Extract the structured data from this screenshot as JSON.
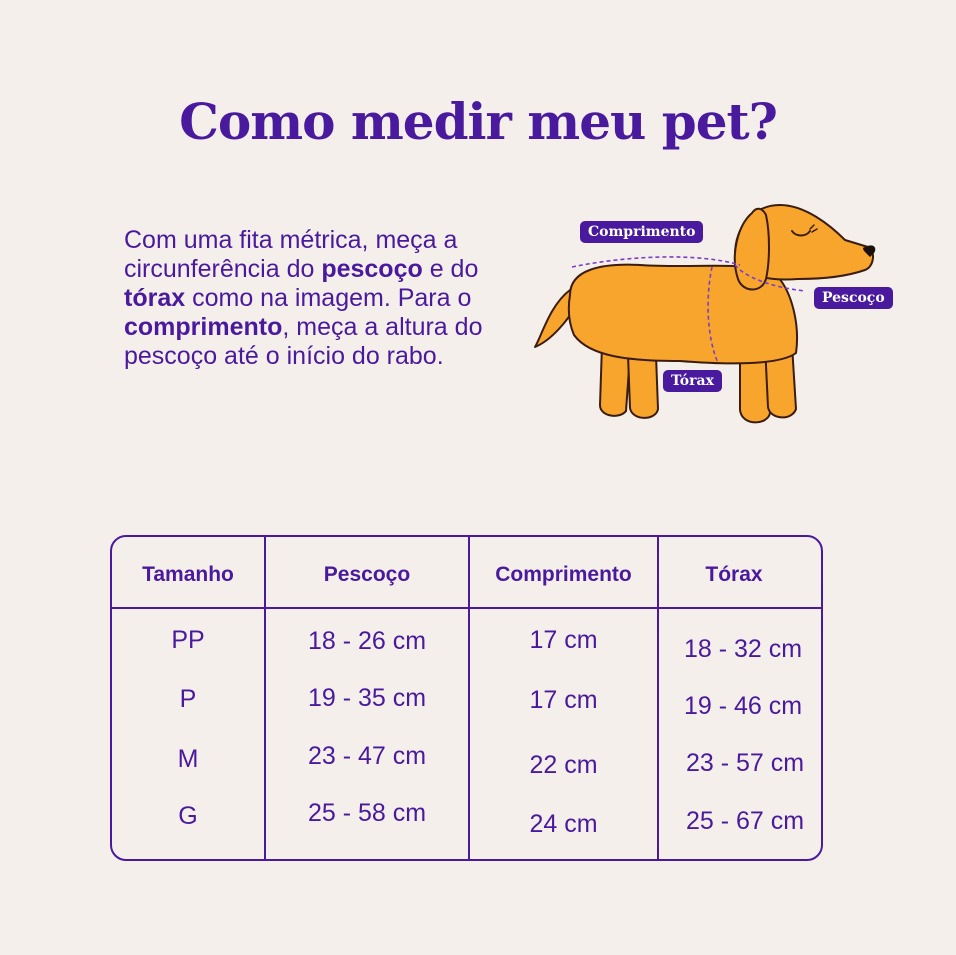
{
  "title": "Como medir meu pet?",
  "intro": {
    "t1": "Com uma fita métrica, meça a circunferência do ",
    "b1": "pescoço",
    "t2": " e do ",
    "b2": "tórax",
    "t3": " como na imagem. Para o ",
    "b3": "comprimento",
    "t4": ", meça a altura do pescoço até o início do rabo."
  },
  "dog_labels": {
    "comprimento": "Comprimento",
    "pescoco": "Pescoço",
    "torax": "Tórax"
  },
  "table": {
    "headers": [
      "Tamanho",
      "Pescoço",
      "Comprimento",
      "Tórax"
    ],
    "rows": [
      [
        "PP",
        "18 - 26 cm",
        "17 cm",
        "18 - 32 cm"
      ],
      [
        "P",
        "19 - 35 cm",
        "17 cm",
        "19 - 46 cm"
      ],
      [
        "M",
        "23 - 47 cm",
        "22 cm",
        "23 - 57 cm"
      ],
      [
        "G",
        "25 - 58 cm",
        "24 cm",
        "25 - 67 cm"
      ]
    ]
  },
  "colors": {
    "background": "#f4efea",
    "accent": "#4a1a9e",
    "dog": "#f7a52c",
    "dog_outline": "#3b1c0f"
  }
}
